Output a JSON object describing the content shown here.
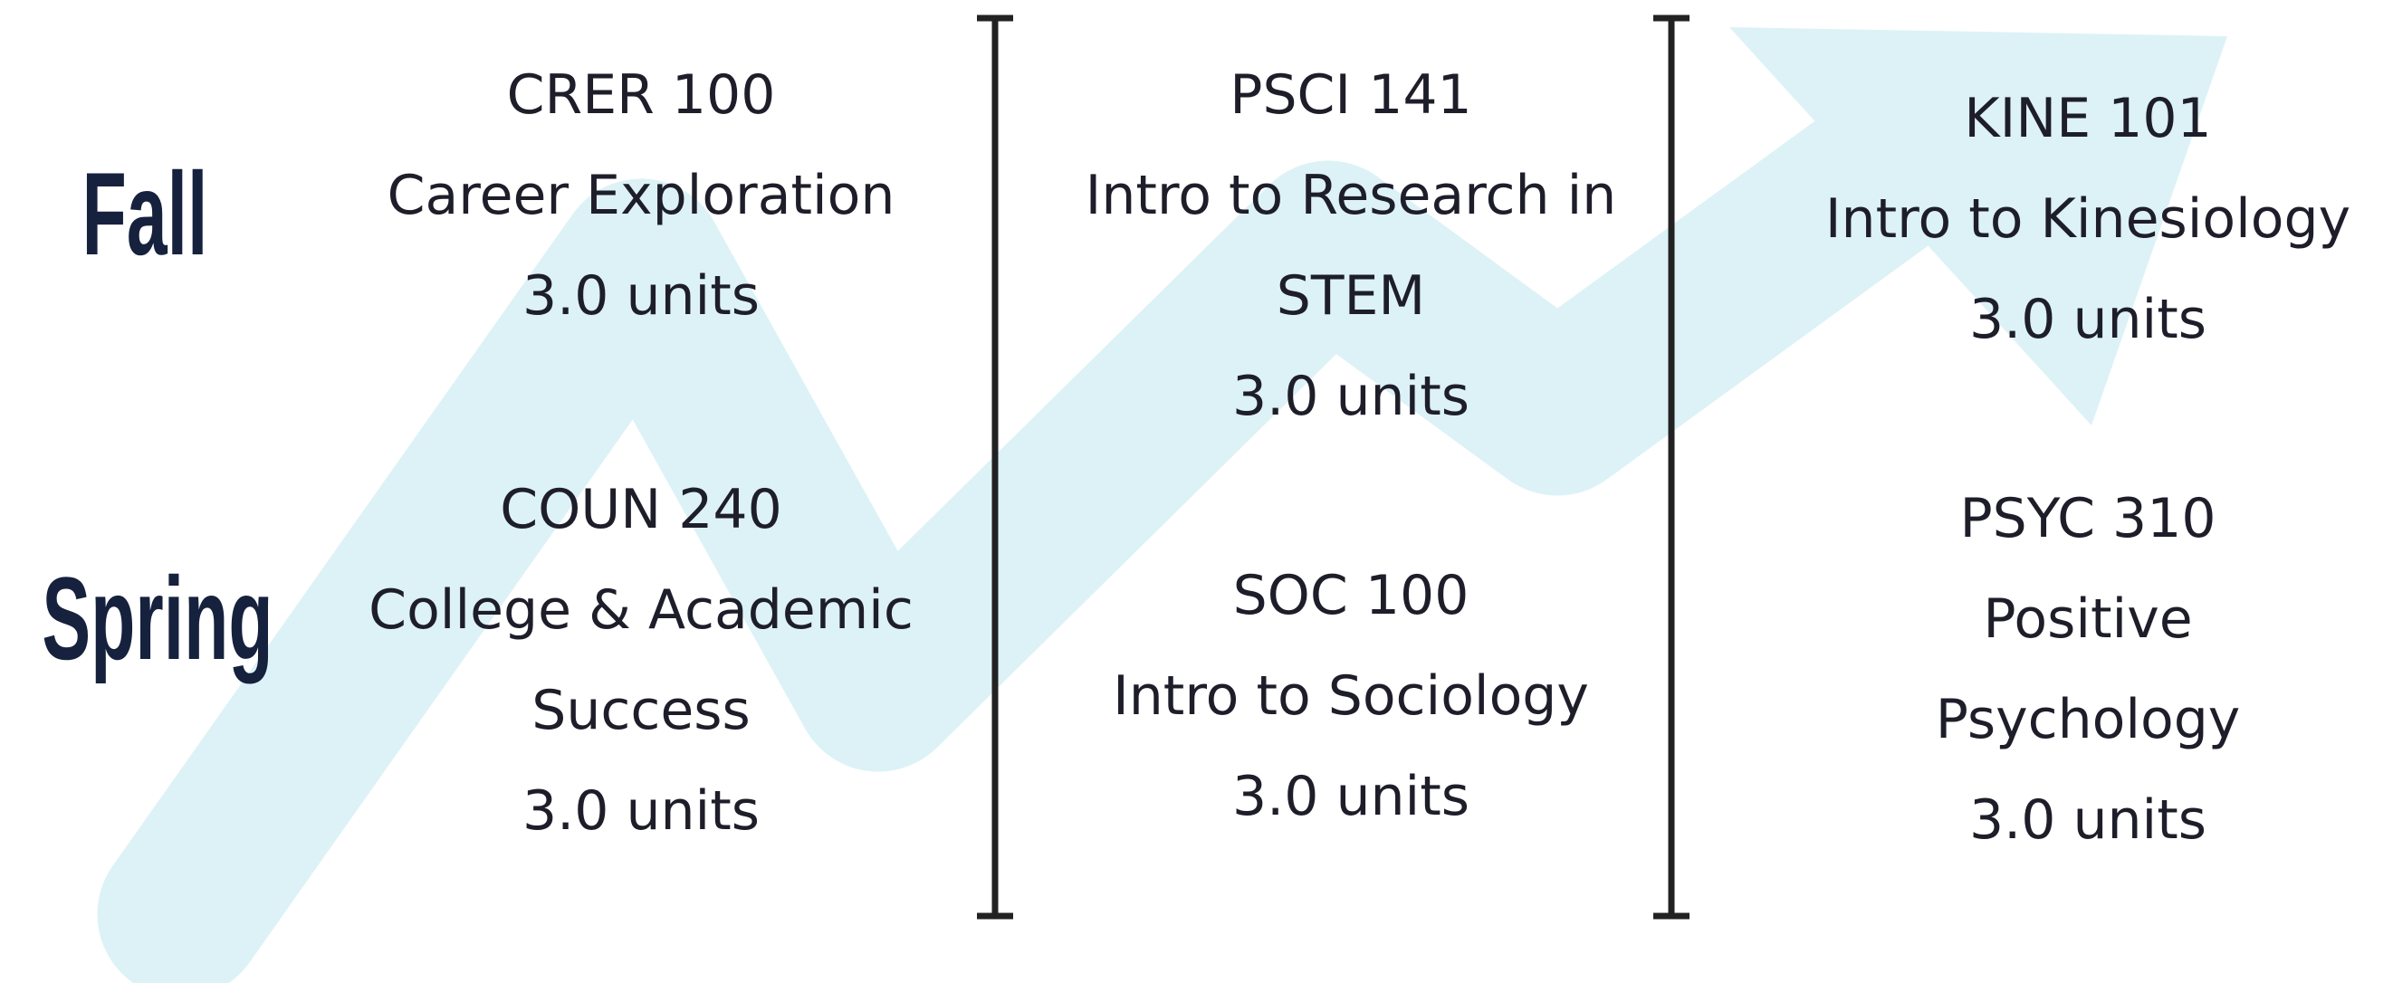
{
  "rows": [
    {
      "term": "Fall",
      "courses": [
        {
          "code": "CRER 100",
          "name": "Career Exploration",
          "units": "3.0 units"
        },
        {
          "code": "PSCI 141",
          "name": "Intro to Research in STEM",
          "units": "3.0 units"
        },
        {
          "code": "KINE 101",
          "name": "Intro to Kinesiology",
          "units": "3.0 units"
        }
      ]
    },
    {
      "term": "Spring",
      "courses": [
        {
          "code": "COUN 240",
          "name": "College & Academic Success",
          "units": "3.0 units"
        },
        {
          "code": "SOC 100",
          "name": "Intro to Sociology",
          "units": "3.0 units"
        },
        {
          "code": "PSYC 310",
          "name": "Positive Psychology",
          "units": "3.0 units"
        }
      ]
    }
  ]
}
